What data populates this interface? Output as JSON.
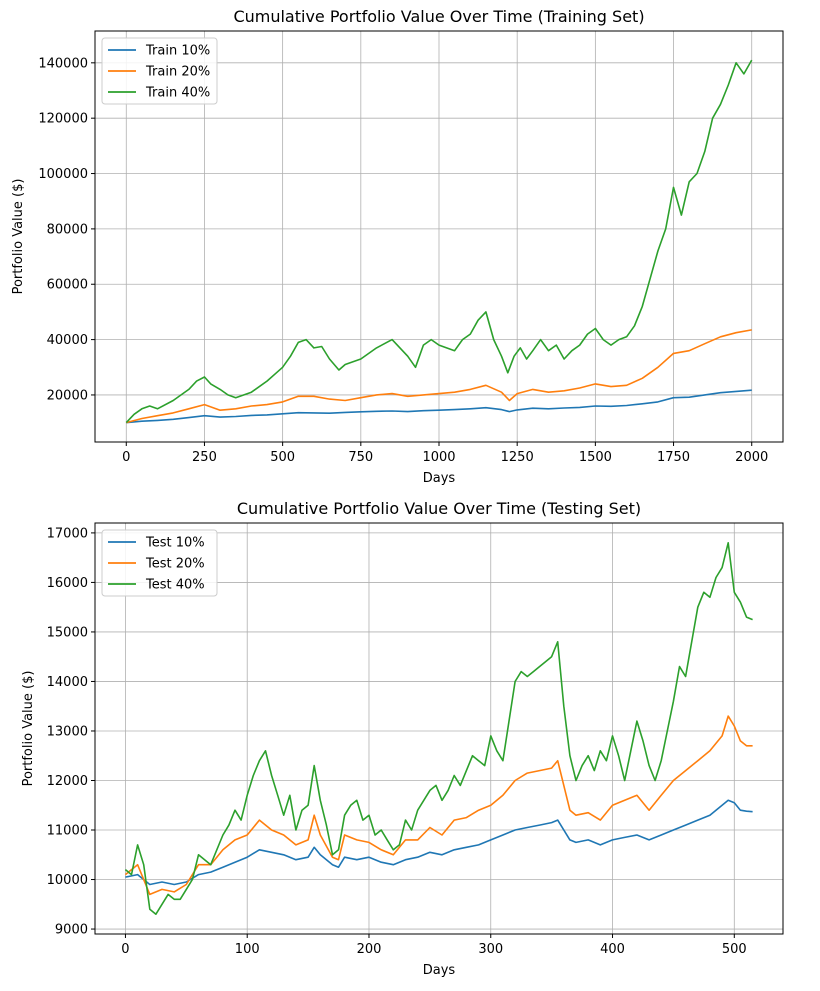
{
  "chart_data": [
    {
      "type": "line",
      "title": "Cumulative Portfolio Value Over Time (Training Set)",
      "xlabel": "Days",
      "ylabel": "Portfolio Value ($)",
      "xlim": [
        -100,
        2100
      ],
      "ylim": [
        3000,
        151500
      ],
      "xticks": [
        0,
        250,
        500,
        750,
        1000,
        1250,
        1500,
        1750,
        2000
      ],
      "yticks": [
        20000,
        40000,
        60000,
        80000,
        100000,
        120000,
        140000
      ],
      "grid": true,
      "legend": "top-left",
      "series": [
        {
          "name": "Train 10%",
          "color": "#1f77b4",
          "x": [
            0,
            50,
            100,
            150,
            200,
            250,
            300,
            350,
            400,
            450,
            500,
            550,
            600,
            650,
            700,
            750,
            800,
            850,
            900,
            950,
            1000,
            1050,
            1100,
            1150,
            1200,
            1225,
            1250,
            1300,
            1350,
            1400,
            1450,
            1500,
            1550,
            1600,
            1650,
            1700,
            1750,
            1800,
            1850,
            1900,
            1950,
            2000
          ],
          "y": [
            10000,
            10500,
            10800,
            11200,
            11800,
            12500,
            12000,
            12200,
            12600,
            12800,
            13200,
            13600,
            13500,
            13400,
            13700,
            13900,
            14100,
            14200,
            14000,
            14300,
            14500,
            14700,
            15000,
            15400,
            14700,
            14000,
            14600,
            15200,
            15000,
            15300,
            15500,
            16000,
            15900,
            16200,
            16800,
            17500,
            19000,
            19200,
            20000,
            20800,
            21300,
            21700
          ]
        },
        {
          "name": "Train 20%",
          "color": "#ff7f0e",
          "x": [
            0,
            50,
            100,
            150,
            200,
            250,
            300,
            350,
            400,
            450,
            500,
            550,
            600,
            650,
            700,
            750,
            800,
            850,
            900,
            950,
            1000,
            1050,
            1100,
            1150,
            1200,
            1225,
            1250,
            1300,
            1350,
            1400,
            1450,
            1500,
            1550,
            1600,
            1650,
            1700,
            1750,
            1800,
            1850,
            1900,
            1950,
            2000
          ],
          "y": [
            10000,
            11500,
            12500,
            13500,
            15000,
            16500,
            14500,
            15000,
            16000,
            16500,
            17500,
            19500,
            19500,
            18500,
            18000,
            19000,
            20000,
            20500,
            19500,
            20000,
            20500,
            21000,
            22000,
            23500,
            21000,
            18000,
            20500,
            22000,
            21000,
            21500,
            22500,
            24000,
            23000,
            23500,
            26000,
            30000,
            35000,
            36000,
            38500,
            41000,
            42500,
            43500
          ]
        },
        {
          "name": "Train 40%",
          "color": "#2ca02c",
          "x": [
            0,
            25,
            50,
            75,
            100,
            150,
            200,
            225,
            250,
            270,
            300,
            325,
            350,
            400,
            450,
            480,
            500,
            525,
            550,
            575,
            600,
            625,
            650,
            680,
            700,
            750,
            800,
            850,
            900,
            925,
            950,
            975,
            1000,
            1050,
            1075,
            1100,
            1125,
            1150,
            1175,
            1200,
            1220,
            1240,
            1260,
            1280,
            1300,
            1325,
            1350,
            1375,
            1400,
            1425,
            1450,
            1475,
            1500,
            1525,
            1550,
            1575,
            1600,
            1625,
            1650,
            1675,
            1700,
            1725,
            1750,
            1775,
            1800,
            1825,
            1850,
            1875,
            1900,
            1925,
            1950,
            1975,
            2000
          ],
          "y": [
            10000,
            13000,
            15000,
            16000,
            15000,
            18000,
            22000,
            25000,
            26500,
            24000,
            22000,
            20000,
            19000,
            21000,
            25000,
            28000,
            30000,
            34000,
            39000,
            40000,
            37000,
            37500,
            33000,
            29000,
            31000,
            33000,
            37000,
            40000,
            34000,
            30000,
            38000,
            40000,
            38000,
            36000,
            40000,
            42000,
            47000,
            50000,
            40000,
            34000,
            28000,
            34000,
            37000,
            33000,
            36000,
            40000,
            36000,
            38000,
            33000,
            36000,
            38000,
            42000,
            44000,
            40000,
            38000,
            40000,
            41000,
            45000,
            52000,
            62000,
            72000,
            80000,
            95000,
            85000,
            97000,
            100000,
            108000,
            120000,
            125000,
            132000,
            140000,
            136000,
            141000
          ]
        }
      ]
    },
    {
      "type": "line",
      "title": "Cumulative Portfolio Value Over Time (Testing Set)",
      "xlabel": "Days",
      "ylabel": "Portfolio Value ($)",
      "xlim": [
        -25,
        540
      ],
      "ylim": [
        8900,
        17200
      ],
      "xticks": [
        0,
        100,
        200,
        300,
        400,
        500
      ],
      "yticks": [
        9000,
        10000,
        11000,
        12000,
        13000,
        14000,
        15000,
        16000,
        17000
      ],
      "grid": true,
      "legend": "top-left",
      "series": [
        {
          "name": "Test 10%",
          "color": "#1f77b4",
          "x": [
            0,
            10,
            20,
            30,
            40,
            50,
            60,
            70,
            80,
            90,
            100,
            110,
            120,
            130,
            140,
            150,
            155,
            160,
            170,
            175,
            180,
            190,
            200,
            210,
            220,
            230,
            240,
            250,
            260,
            270,
            280,
            290,
            300,
            310,
            320,
            330,
            340,
            350,
            355,
            365,
            370,
            380,
            390,
            400,
            410,
            420,
            430,
            440,
            450,
            460,
            470,
            480,
            490,
            495,
            500,
            505,
            510,
            515
          ],
          "y": [
            10050,
            10100,
            9900,
            9950,
            9900,
            9950,
            10100,
            10150,
            10250,
            10350,
            10450,
            10600,
            10550,
            10500,
            10400,
            10450,
            10650,
            10500,
            10300,
            10250,
            10450,
            10400,
            10450,
            10350,
            10300,
            10400,
            10450,
            10550,
            10500,
            10600,
            10650,
            10700,
            10800,
            10900,
            11000,
            11050,
            11100,
            11150,
            11200,
            10800,
            10750,
            10800,
            10700,
            10800,
            10850,
            10900,
            10800,
            10900,
            11000,
            11100,
            11200,
            11300,
            11500,
            11600,
            11550,
            11400,
            11380,
            11370
          ]
        },
        {
          "name": "Test 20%",
          "color": "#ff7f0e",
          "x": [
            0,
            10,
            20,
            30,
            40,
            50,
            60,
            70,
            80,
            90,
            100,
            110,
            120,
            130,
            140,
            150,
            155,
            160,
            170,
            175,
            180,
            190,
            200,
            210,
            220,
            230,
            240,
            250,
            260,
            270,
            280,
            290,
            300,
            310,
            320,
            330,
            340,
            350,
            355,
            365,
            370,
            380,
            390,
            400,
            410,
            420,
            430,
            440,
            450,
            460,
            470,
            480,
            490,
            495,
            500,
            505,
            510,
            515
          ],
          "y": [
            10100,
            10300,
            9700,
            9800,
            9750,
            9900,
            10300,
            10300,
            10600,
            10800,
            10900,
            11200,
            11000,
            10900,
            10700,
            10800,
            11300,
            10900,
            10450,
            10400,
            10900,
            10800,
            10750,
            10600,
            10500,
            10800,
            10800,
            11050,
            10900,
            11200,
            11250,
            11400,
            11500,
            11700,
            12000,
            12150,
            12200,
            12250,
            12400,
            11400,
            11300,
            11350,
            11200,
            11500,
            11600,
            11700,
            11400,
            11700,
            12000,
            12200,
            12400,
            12600,
            12900,
            13300,
            13100,
            12800,
            12700,
            12700
          ]
        },
        {
          "name": "Test 40%",
          "color": "#2ca02c",
          "x": [
            0,
            5,
            10,
            15,
            20,
            25,
            30,
            35,
            40,
            45,
            50,
            55,
            60,
            70,
            80,
            85,
            90,
            95,
            100,
            105,
            110,
            115,
            120,
            125,
            130,
            135,
            140,
            145,
            150,
            155,
            160,
            165,
            170,
            175,
            180,
            185,
            190,
            195,
            200,
            205,
            210,
            215,
            220,
            225,
            230,
            235,
            240,
            245,
            250,
            255,
            260,
            265,
            270,
            275,
            280,
            285,
            290,
            295,
            300,
            305,
            310,
            315,
            320,
            325,
            330,
            335,
            340,
            345,
            350,
            355,
            360,
            365,
            370,
            375,
            380,
            385,
            390,
            395,
            400,
            405,
            410,
            415,
            420,
            425,
            430,
            435,
            440,
            445,
            450,
            455,
            460,
            465,
            470,
            475,
            480,
            485,
            490,
            495,
            500,
            505,
            510,
            515
          ],
          "y": [
            10200,
            10100,
            10700,
            10300,
            9400,
            9300,
            9500,
            9700,
            9600,
            9600,
            9800,
            10000,
            10500,
            10300,
            10900,
            11100,
            11400,
            11200,
            11700,
            12100,
            12400,
            12600,
            12100,
            11700,
            11300,
            11700,
            11000,
            11400,
            11500,
            12300,
            11600,
            11100,
            10500,
            10600,
            11300,
            11500,
            11600,
            11200,
            11300,
            10900,
            11000,
            10800,
            10600,
            10700,
            11200,
            11000,
            11400,
            11600,
            11800,
            11900,
            11600,
            11800,
            12100,
            11900,
            12200,
            12500,
            12400,
            12300,
            12900,
            12600,
            12400,
            13200,
            14000,
            14200,
            14100,
            14200,
            14300,
            14400,
            14500,
            14800,
            13500,
            12500,
            12000,
            12300,
            12500,
            12200,
            12600,
            12400,
            12900,
            12500,
            12000,
            12600,
            13200,
            12800,
            12300,
            12000,
            12400,
            13000,
            13600,
            14300,
            14100,
            14800,
            15500,
            15800,
            15700,
            16100,
            16300,
            16800,
            15800,
            15600,
            15300,
            15250
          ]
        }
      ]
    }
  ]
}
